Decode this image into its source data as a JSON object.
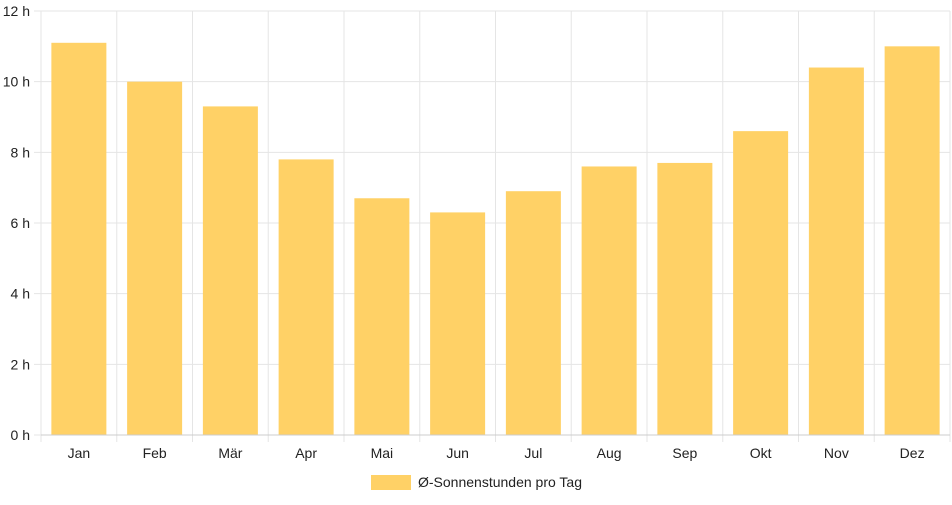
{
  "chart_data": {
    "type": "bar",
    "categories": [
      "Jan",
      "Feb",
      "Mär",
      "Apr",
      "Mai",
      "Jun",
      "Jul",
      "Aug",
      "Sep",
      "Okt",
      "Nov",
      "Dez"
    ],
    "series": [
      {
        "name": "Ø-Sonnenstunden pro Tag",
        "values": [
          11.1,
          10.0,
          9.3,
          7.8,
          6.7,
          6.3,
          6.9,
          7.6,
          7.7,
          8.6,
          10.4,
          11.0
        ],
        "color": "#ffd166"
      }
    ],
    "y_ticks": [
      "0 h",
      "2 h",
      "4 h",
      "6 h",
      "8 h",
      "10 h",
      "12 h"
    ],
    "ylim": [
      0,
      12
    ],
    "grid": true,
    "legend_position": "bottom",
    "grid_color": "#e5e5e5",
    "axis_color": "#cccccc"
  }
}
